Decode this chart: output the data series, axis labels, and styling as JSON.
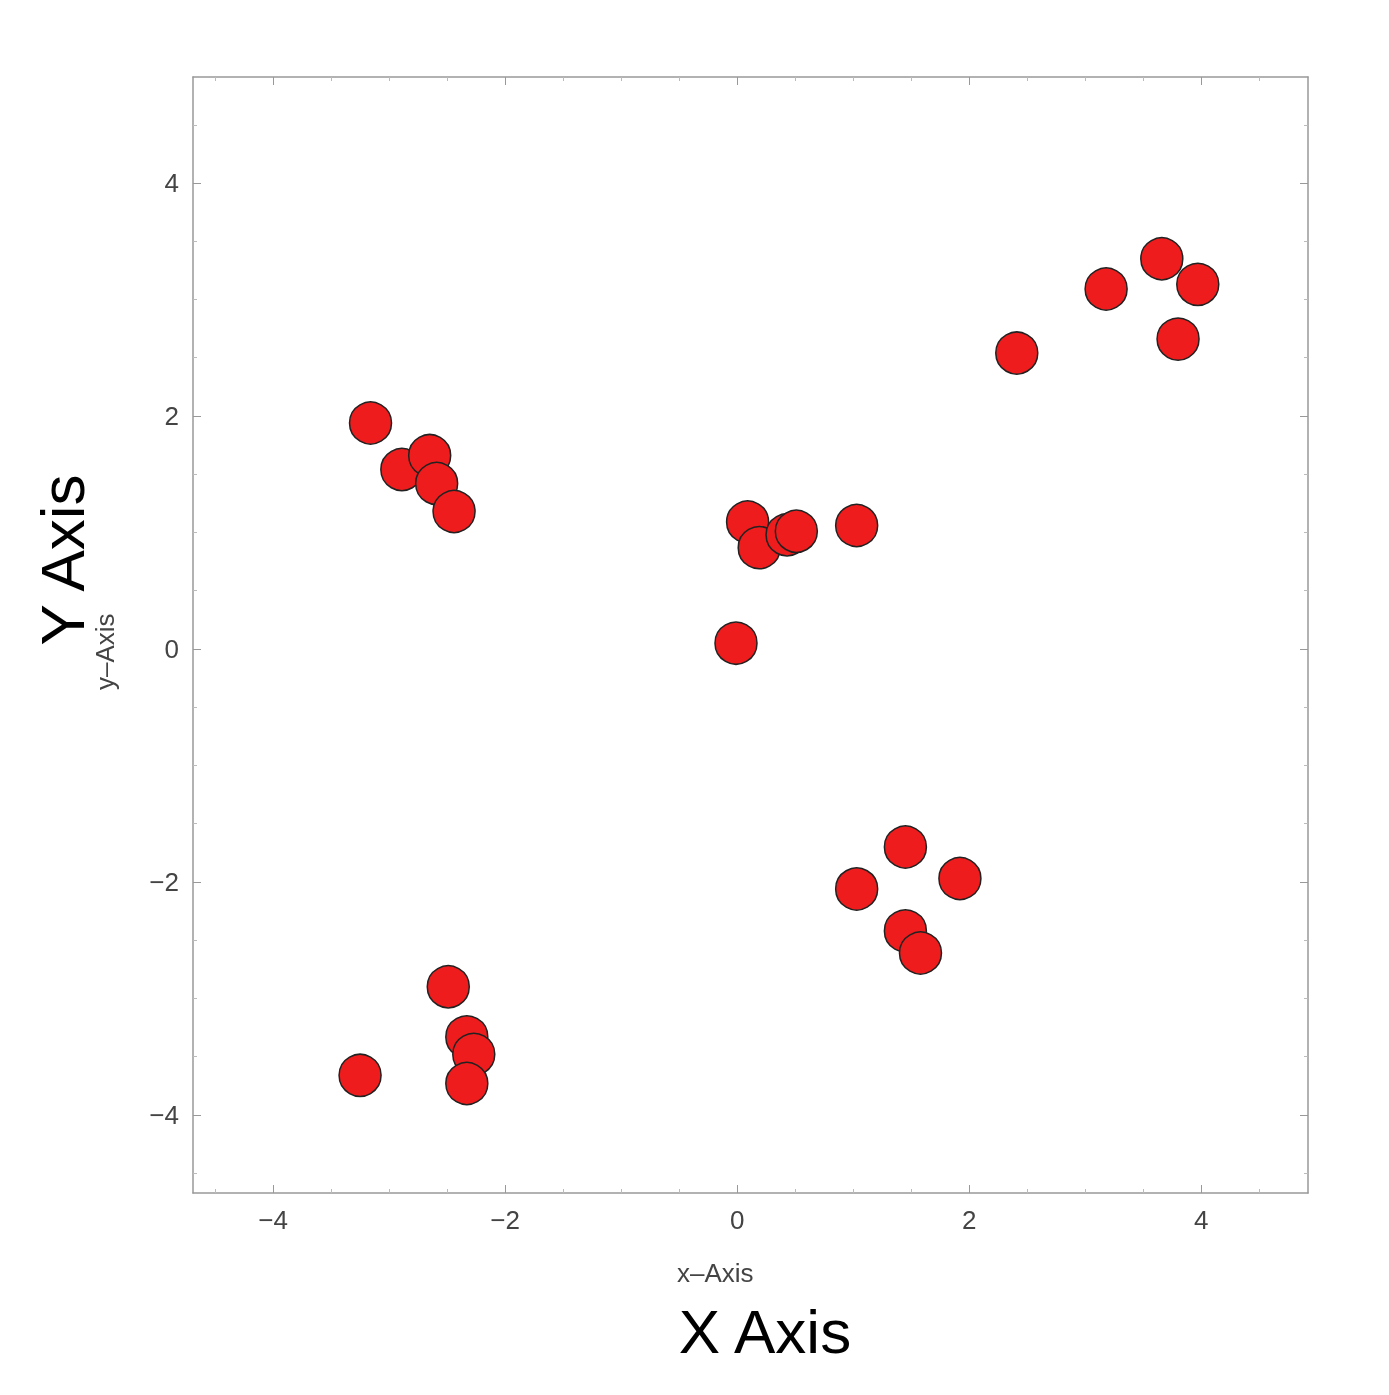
{
  "chart_data": {
    "type": "scatter",
    "xlabel": "X Axis",
    "ylabel": "Y Axis",
    "annotations": [
      "x–Axis",
      "y–Axis"
    ],
    "x": [
      -3.16,
      -2.89,
      -2.65,
      -2.59,
      -2.44,
      0.09,
      0.19,
      0.43,
      0.51,
      1.03,
      -0.01,
      2.41,
      3.18,
      3.66,
      3.97,
      3.8,
      1.45,
      1.92,
      1.03,
      1.45,
      1.58,
      -2.49,
      -2.33,
      -2.27,
      -2.33,
      -3.25
    ],
    "values": [
      1.94,
      1.54,
      1.66,
      1.42,
      1.18,
      1.09,
      0.87,
      0.98,
      1.01,
      1.06,
      0.05,
      2.54,
      3.09,
      3.35,
      3.13,
      2.66,
      -1.7,
      -1.97,
      -2.06,
      -2.42,
      -2.61,
      -2.9,
      -3.33,
      -3.48,
      -3.73,
      -3.66
    ],
    "color": "#ee1c1c",
    "marker": "circle",
    "grid": false,
    "xlim": [
      -4.69,
      4.92
    ],
    "ylim": [
      -4.67,
      4.91
    ],
    "xticks": [
      -4,
      -2,
      0,
      2,
      4
    ],
    "yticks": [
      -4,
      -2,
      0,
      2,
      4
    ]
  }
}
